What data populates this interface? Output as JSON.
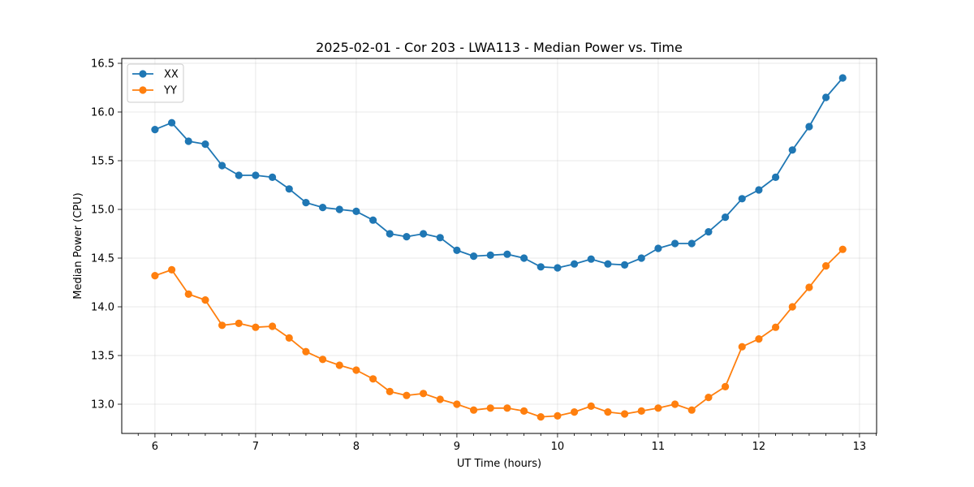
{
  "chart_data": {
    "type": "line",
    "title": "2025-02-01 - Cor 203 - LWA113 - Median Power vs. Time",
    "xlabel": "UT Time (hours)",
    "ylabel": "Median Power (CPU)",
    "xlim": [
      5.67,
      13.17
    ],
    "ylim": [
      12.7,
      16.55
    ],
    "xticks": [
      6,
      7,
      8,
      9,
      10,
      11,
      12,
      13
    ],
    "yticks": [
      13.0,
      13.5,
      14.0,
      14.5,
      15.0,
      15.5,
      16.0,
      16.5
    ],
    "xtick_labels": [
      "6",
      "7",
      "8",
      "9",
      "10",
      "11",
      "12",
      "13"
    ],
    "ytick_labels": [
      "13.0",
      "13.5",
      "14.0",
      "14.5",
      "15.0",
      "15.5",
      "16.0",
      "16.5"
    ],
    "grid": true,
    "legend_position": "top-left",
    "x": [
      6.0,
      6.1667,
      6.3333,
      6.5,
      6.6667,
      6.8333,
      7.0,
      7.1667,
      7.3333,
      7.5,
      7.6667,
      7.8333,
      8.0,
      8.1667,
      8.3333,
      8.5,
      8.6667,
      8.8333,
      9.0,
      9.1667,
      9.3333,
      9.5,
      9.6667,
      9.8333,
      10.0,
      10.1667,
      10.3333,
      10.5,
      10.6667,
      10.8333,
      11.0,
      11.1667,
      11.3333,
      11.5,
      11.6667,
      11.8333,
      12.0,
      12.1667,
      12.3333,
      12.5,
      12.6667,
      12.8333
    ],
    "series": [
      {
        "name": "XX",
        "color": "#1f77b4",
        "values": [
          15.82,
          15.89,
          15.7,
          15.67,
          15.45,
          15.35,
          15.35,
          15.33,
          15.21,
          15.07,
          15.02,
          15.0,
          14.98,
          14.89,
          14.75,
          14.72,
          14.75,
          14.71,
          14.58,
          14.52,
          14.53,
          14.54,
          14.5,
          14.41,
          14.4,
          14.44,
          14.49,
          14.44,
          14.43,
          14.5,
          14.6,
          14.65,
          14.65,
          14.77,
          14.92,
          15.11,
          15.2,
          15.33,
          15.61,
          15.85,
          16.15,
          16.35
        ]
      },
      {
        "name": "YY",
        "color": "#ff7f0e",
        "values": [
          14.32,
          14.38,
          14.13,
          14.07,
          13.81,
          13.83,
          13.79,
          13.8,
          13.68,
          13.54,
          13.46,
          13.4,
          13.35,
          13.26,
          13.13,
          13.09,
          13.11,
          13.05,
          13.0,
          12.94,
          12.96,
          12.96,
          12.93,
          12.87,
          12.88,
          12.92,
          12.98,
          12.92,
          12.9,
          12.93,
          12.96,
          13.0,
          12.94,
          13.07,
          13.18,
          13.59,
          13.67,
          13.79,
          14.0,
          14.2,
          14.42,
          14.59
        ]
      }
    ]
  }
}
